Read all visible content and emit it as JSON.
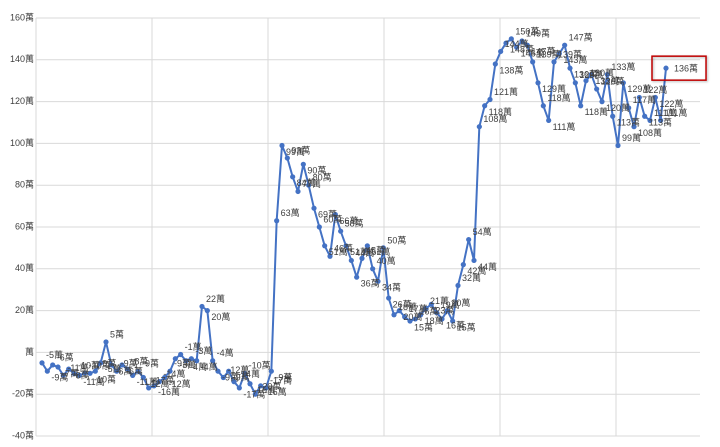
{
  "chart_data": {
    "type": "line",
    "ylim": [
      -40,
      160
    ],
    "yticks": [
      {
        "value": -40,
        "label": "-40萬"
      },
      {
        "value": -20,
        "label": "-20萬"
      },
      {
        "value": 0,
        "label": "萬"
      },
      {
        "value": 20,
        "label": "20萬"
      },
      {
        "value": 40,
        "label": "40萬"
      },
      {
        "value": 60,
        "label": "60萬"
      },
      {
        "value": 80,
        "label": "80萬"
      },
      {
        "value": 100,
        "label": "100萬"
      },
      {
        "value": 120,
        "label": "120萬"
      },
      {
        "value": 140,
        "label": "140萬"
      },
      {
        "value": 160,
        "label": "160萬"
      }
    ],
    "grid": true,
    "series": [
      {
        "color": "#4472c4",
        "values": [
          -5,
          -9,
          -6,
          -7,
          -11,
          -8,
          -10,
          -11,
          -10,
          -10,
          -9,
          -5,
          5,
          -6,
          -9,
          -6,
          -8,
          -11,
          -9,
          -12,
          -17,
          -16,
          -14,
          -12,
          -9,
          -3,
          -1,
          -4,
          -3,
          -4,
          22,
          20,
          -4,
          -9,
          -12,
          -9,
          -14,
          -17,
          -10,
          -15,
          -20,
          -16,
          -17,
          -9,
          63,
          99,
          93,
          84,
          77,
          90,
          80,
          69,
          60,
          51,
          46,
          66,
          58,
          51,
          44,
          36,
          45,
          51,
          40,
          34,
          50,
          26,
          18,
          20,
          17,
          15,
          16,
          18,
          21,
          23,
          19,
          16,
          20,
          15,
          32,
          42,
          54,
          44,
          108,
          118,
          121,
          138,
          144,
          148,
          150,
          146,
          149,
          147,
          139,
          129,
          118,
          111,
          139,
          143,
          147,
          136,
          129,
          118,
          130,
          133,
          126,
          120,
          133,
          113,
          99,
          129,
          117,
          108,
          122,
          113,
          111,
          122,
          111,
          136
        ],
        "value_labels": [
          "-5萬",
          "-9萬",
          "-6萬",
          "-7萬",
          "-11萬",
          "-8萬",
          "-10萬",
          "-11萬",
          "-10萬",
          "-10萬",
          "-9萬",
          "-5萬",
          "5萬",
          "-6萬",
          "-9萬",
          "-6萬",
          "-8萬",
          "-11萬",
          "-9萬",
          "-12萬",
          "-17萬",
          "-16萬",
          "-14萬",
          "-12萬",
          "-9萬",
          "-3萬",
          "-1萬",
          "-4萬",
          "-3萬",
          "-4萬",
          "22萬",
          "20萬",
          "-4萬",
          "-9萬",
          "-12萬",
          "-9萬",
          "-14萬",
          "-17萬",
          "-10萬",
          "-15萬",
          "-20萬",
          "-16萬",
          "-17萬",
          "-9萬",
          "63萬",
          "99萬",
          "93萬",
          "84萬",
          "77萬",
          "90萬",
          "80萬",
          "69萬",
          "60萬",
          "51萬",
          "46萬",
          "66萬",
          "58萬",
          "51萬",
          "44萬",
          "36萬",
          "45萬",
          "51萬",
          "40萬",
          "34萬",
          "50萬",
          "26萬",
          "18萬",
          "20萬",
          "17萬",
          "15萬",
          "16萬",
          "18萬",
          "21萬",
          "23萬",
          "19萬",
          "16萬",
          "20萬",
          "15萬",
          "32萬",
          "42萬",
          "54萬",
          "44萬",
          "108萬",
          "118萬",
          "121萬",
          "138萬",
          "144萬",
          "148萬",
          "150萬",
          "146萬",
          "149萬",
          "147萬",
          "139萬",
          "129萬",
          "118萬",
          "111萬",
          "139萬",
          "143萬",
          "147萬",
          "136萬",
          "129萬",
          "118萬",
          "130萬",
          "133萬",
          "126萬",
          "120萬",
          "133萬",
          "113萬",
          "99萬",
          "129萬",
          "117萬",
          "108萬",
          "122萬",
          "113萬",
          "111萬",
          "122萬",
          "111萬",
          "136萬"
        ]
      }
    ]
  }
}
